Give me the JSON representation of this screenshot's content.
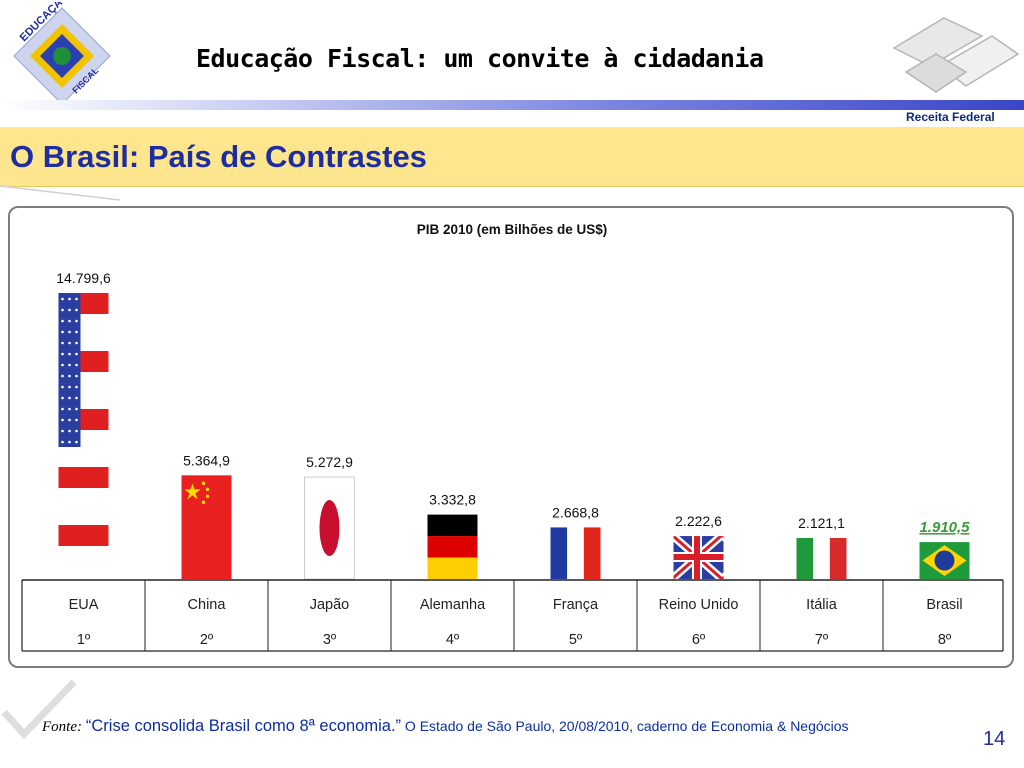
{
  "header": {
    "title": "Educação Fiscal: um convite à cidadania"
  },
  "logo_left": {
    "text_top": "EDUCAÇÃO",
    "text_bottom": "FISCAL"
  },
  "logo_right": {
    "label": "Receita Federal"
  },
  "slide": {
    "title": "O Brasil: País de Contrastes",
    "page_number": "14"
  },
  "source": {
    "label": "Fonte:",
    "quote": "“Crise consolida Brasil como 8ª economia.”",
    "rest": "O Estado de São Paulo, 20/08/2010, caderno de Economia & Negócios"
  },
  "colors": {
    "title": "#1e2da0",
    "title_band": "#fde68d",
    "brasil_label": "#3a9a3a"
  },
  "chart_data": {
    "type": "bar",
    "title": "PIB 2010 (em Bilhões de US$)",
    "categories": [
      "EUA",
      "China",
      "Japão",
      "Alemanha",
      "França",
      "Reino Unido",
      "Itália",
      "Brasil"
    ],
    "ranks": [
      "1º",
      "2º",
      "3º",
      "4º",
      "5º",
      "6º",
      "7º",
      "8º"
    ],
    "values": [
      14799.6,
      5364.9,
      5272.9,
      3332.8,
      2668.8,
      2222.6,
      2121.1,
      1910.5
    ],
    "value_labels": [
      "14.799,6",
      "5.364,9",
      "5.272,9",
      "3.332,8",
      "2.668,8",
      "2.222,6",
      "2.121,1",
      "1.910,5"
    ],
    "bar_fill": [
      "flag-usa",
      "flag-china",
      "flag-japan",
      "flag-germany",
      "flag-france",
      "flag-uk",
      "flag-italy",
      "flag-brazil"
    ],
    "highlight": "Brasil",
    "grid": false,
    "legend": "none"
  }
}
